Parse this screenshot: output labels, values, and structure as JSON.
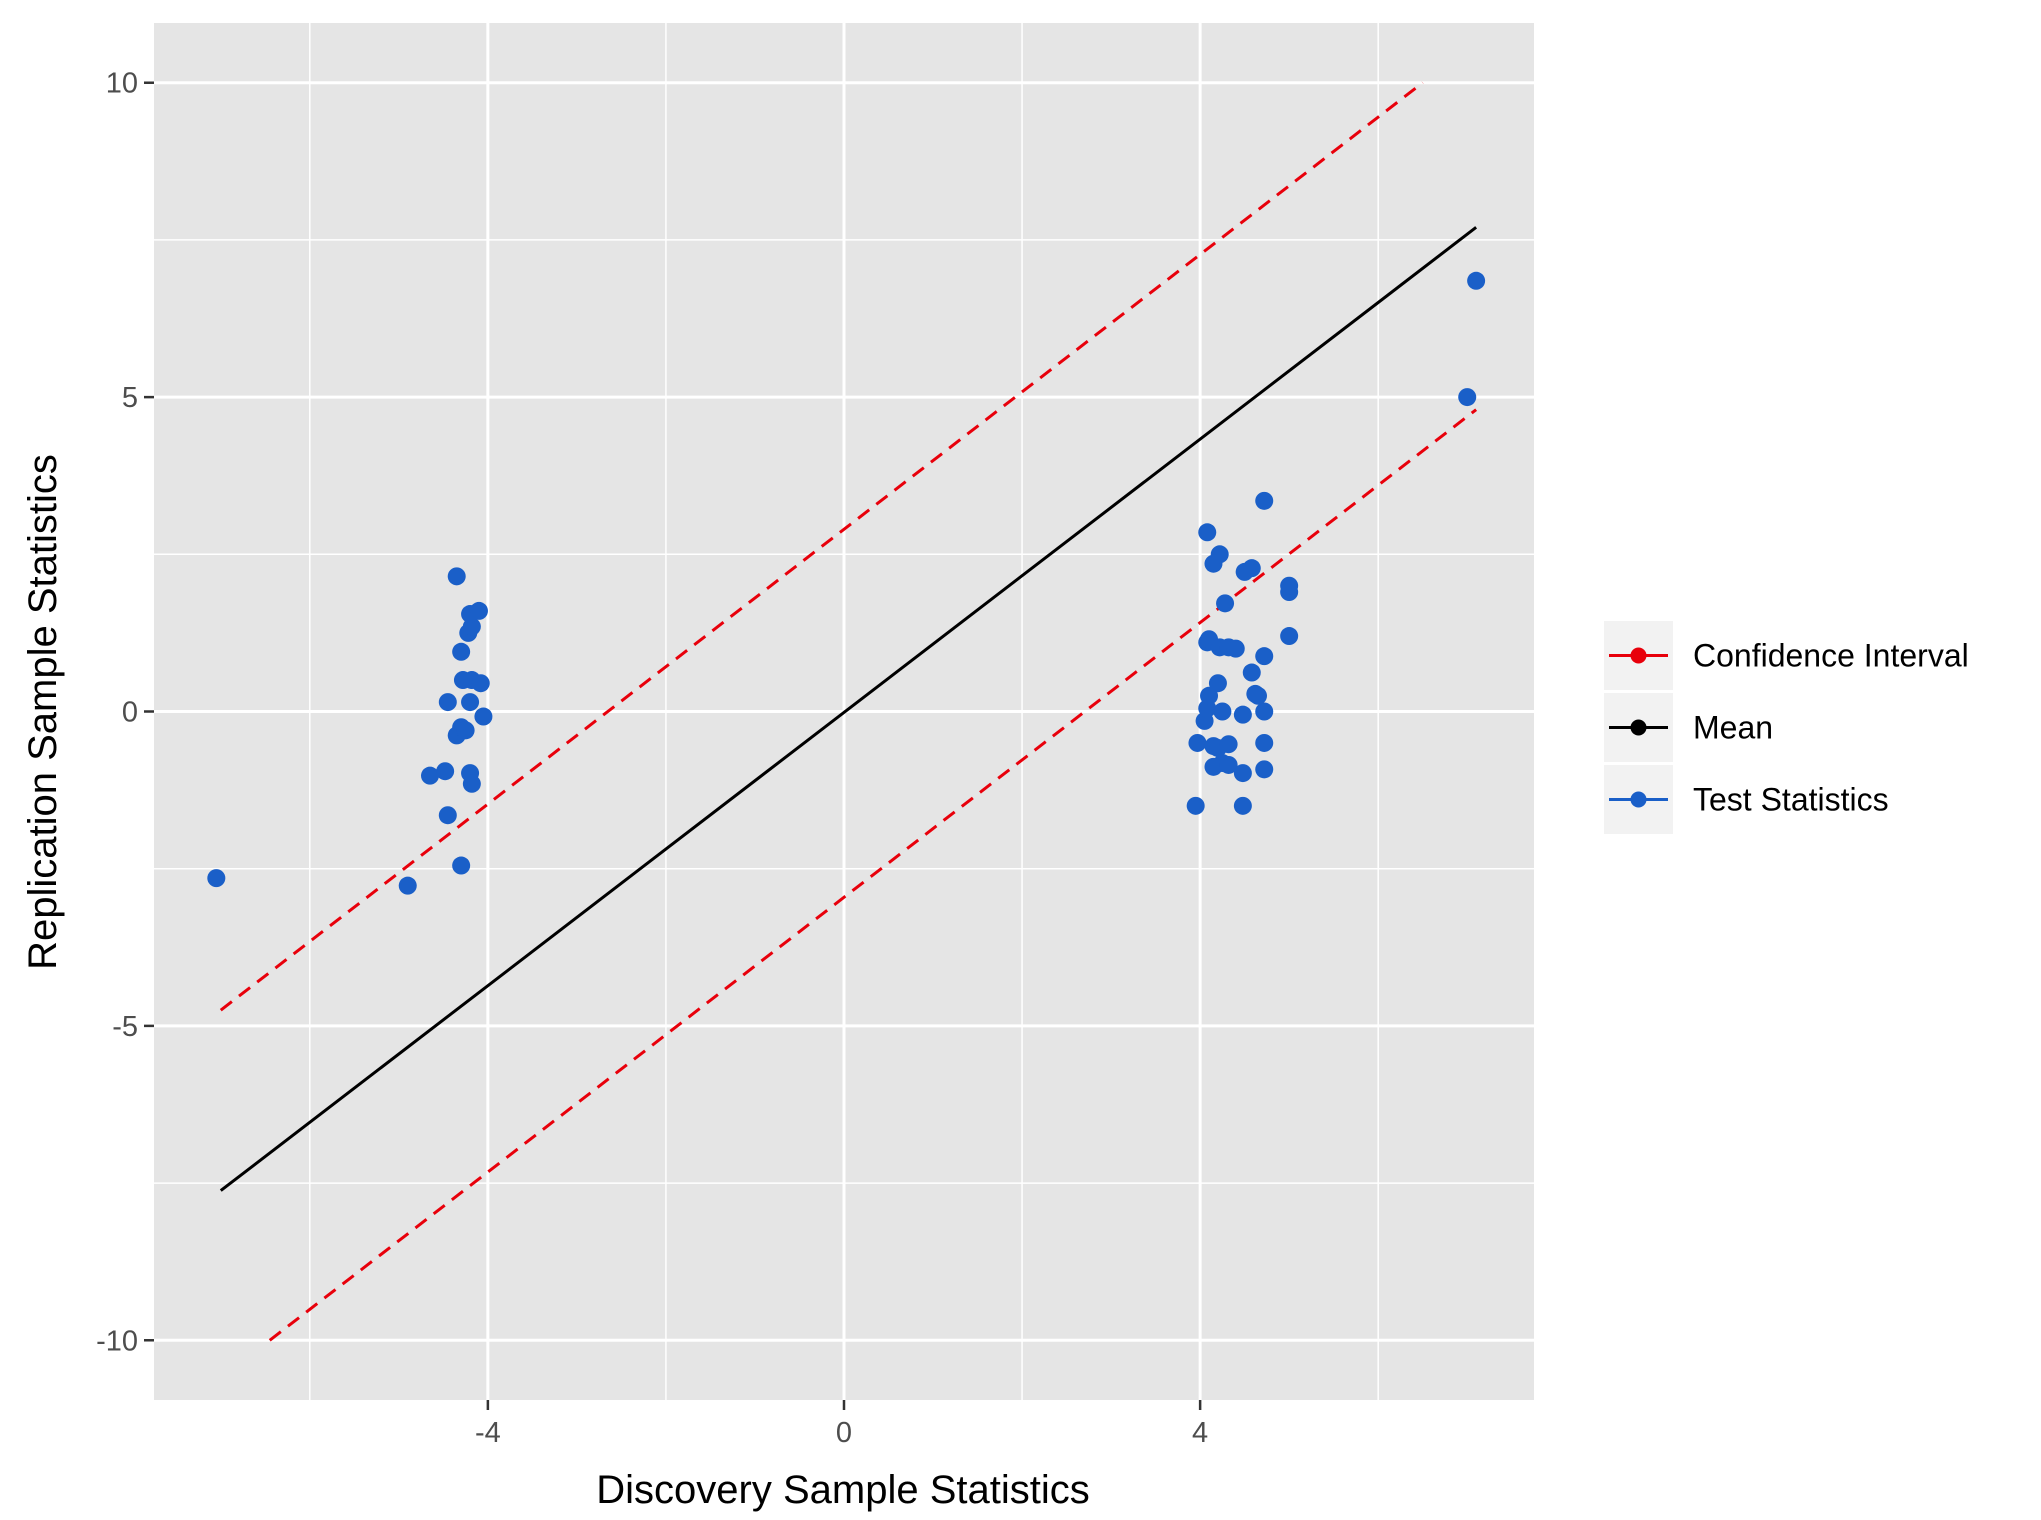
{
  "chart_data": {
    "type": "scatter",
    "xlabel": "Discovery Sample Statistics",
    "ylabel": "Replication Sample Statistics",
    "xlim": [
      -7.75,
      7.75
    ],
    "ylim": [
      -10.95,
      10.95
    ],
    "x_ticks": [
      -4,
      0,
      4
    ],
    "x_tick_labels": [
      "-4",
      "0",
      "4"
    ],
    "y_ticks": [
      -10,
      -5,
      0,
      5,
      10
    ],
    "y_tick_labels": [
      "-10",
      "-5",
      "0",
      "5",
      "10"
    ],
    "grid": true,
    "legend_position": "right",
    "background": "#e5e5e5",
    "series": [
      {
        "name": "Confidence Interval",
        "kind": "line",
        "linestyle": "dashed",
        "color": "#e8000b",
        "segments": [
          [
            [
              -7.0,
              -4.75
            ],
            [
              6.5,
              10.0
            ]
          ],
          [
            [
              -6.45,
              -10.0
            ],
            [
              7.1,
              4.8
            ]
          ]
        ]
      },
      {
        "name": "Mean",
        "kind": "line",
        "linestyle": "solid",
        "color": "#000000",
        "points": [
          [
            -7.0,
            -7.62
          ],
          [
            7.1,
            7.7
          ]
        ]
      },
      {
        "name": "Test Statistics",
        "kind": "points",
        "color": "#1a5fc8",
        "points": [
          [
            -7.05,
            -2.65
          ],
          [
            -4.9,
            -2.77
          ],
          [
            -4.3,
            -2.45
          ],
          [
            -4.45,
            -1.65
          ],
          [
            -4.65,
            -1.02
          ],
          [
            -4.48,
            -0.95
          ],
          [
            -4.2,
            -0.98
          ],
          [
            -4.18,
            -1.15
          ],
          [
            -4.35,
            -0.38
          ],
          [
            -4.3,
            -0.25
          ],
          [
            -4.25,
            -0.3
          ],
          [
            -4.45,
            0.15
          ],
          [
            -4.2,
            0.15
          ],
          [
            -4.05,
            -0.08
          ],
          [
            -4.28,
            0.5
          ],
          [
            -4.18,
            0.5
          ],
          [
            -4.08,
            0.45
          ],
          [
            -4.3,
            0.95
          ],
          [
            -4.22,
            1.25
          ],
          [
            -4.18,
            1.35
          ],
          [
            -4.2,
            1.55
          ],
          [
            -4.1,
            1.6
          ],
          [
            -4.35,
            2.15
          ],
          [
            3.95,
            -1.5
          ],
          [
            4.48,
            -1.5
          ],
          [
            3.97,
            -0.5
          ],
          [
            4.15,
            -0.55
          ],
          [
            4.2,
            -0.58
          ],
          [
            4.32,
            -0.52
          ],
          [
            4.15,
            -0.88
          ],
          [
            4.25,
            -0.82
          ],
          [
            4.32,
            -0.85
          ],
          [
            4.48,
            -0.98
          ],
          [
            4.72,
            -0.92
          ],
          [
            4.72,
            -0.5
          ],
          [
            4.05,
            -0.15
          ],
          [
            4.08,
            0.05
          ],
          [
            4.25,
            0.0
          ],
          [
            4.48,
            -0.05
          ],
          [
            4.72,
            0.0
          ],
          [
            4.1,
            0.25
          ],
          [
            4.2,
            0.45
          ],
          [
            4.62,
            0.28
          ],
          [
            4.65,
            0.25
          ],
          [
            4.58,
            0.62
          ],
          [
            4.72,
            0.88
          ],
          [
            4.08,
            1.1
          ],
          [
            4.1,
            1.15
          ],
          [
            4.22,
            1.02
          ],
          [
            4.32,
            1.02
          ],
          [
            4.4,
            1.0
          ],
          [
            5.0,
            1.2
          ],
          [
            4.28,
            1.72
          ],
          [
            4.15,
            2.35
          ],
          [
            4.22,
            2.5
          ],
          [
            4.5,
            2.22
          ],
          [
            4.58,
            2.28
          ],
          [
            5.0,
            1.9
          ],
          [
            5.0,
            2.0
          ],
          [
            4.08,
            2.85
          ],
          [
            4.72,
            3.35
          ],
          [
            7.0,
            5.0
          ],
          [
            7.1,
            6.85
          ]
        ]
      }
    ]
  }
}
